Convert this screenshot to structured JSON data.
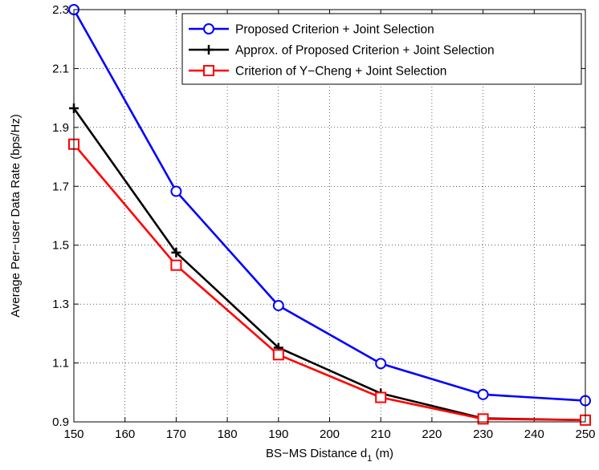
{
  "chart_data": {
    "type": "line",
    "title": "",
    "xlabel": "BS−MS Distance d",
    "xlabel_sub": "1",
    "xlabel_unit": " (m)",
    "ylabel": "Average Per−user Data Rate (bps/Hz)",
    "xlim": [
      150,
      250
    ],
    "ylim": [
      0.9,
      2.3
    ],
    "x_ticks": [
      150,
      160,
      170,
      180,
      190,
      200,
      210,
      220,
      230,
      240,
      250
    ],
    "x_tick_labels": [
      "150",
      "160",
      "170",
      "180",
      "190",
      "200",
      "210",
      "220",
      "230",
      "240",
      "250"
    ],
    "y_ticks": [
      0.9,
      1.1,
      1.3,
      1.5,
      1.7,
      1.9,
      2.1,
      2.3
    ],
    "y_tick_labels": [
      "0.9",
      "1.1",
      "1.3",
      "1.5",
      "1.7",
      "1.9",
      "2.1",
      "2.3"
    ],
    "grid": true,
    "legend_position": "top-right",
    "x": [
      150,
      170,
      190,
      210,
      230,
      250
    ],
    "series": [
      {
        "name": "Proposed Criterion + Joint Selection",
        "values": [
          2.3,
          1.683,
          1.295,
          1.098,
          0.993,
          0.972
        ],
        "color": "#0000ff",
        "marker": "circle"
      },
      {
        "name": "Approx. of Proposed Criterion + Joint Selection",
        "values": [
          1.965,
          1.475,
          1.152,
          0.997,
          0.912,
          0.906
        ],
        "color": "#000000",
        "marker": "plus"
      },
      {
        "name": "Criterion of Y−Cheng + Joint Selection",
        "values": [
          1.843,
          1.432,
          1.128,
          0.983,
          0.91,
          0.906
        ],
        "color": "#ff0000",
        "marker": "square"
      }
    ]
  }
}
